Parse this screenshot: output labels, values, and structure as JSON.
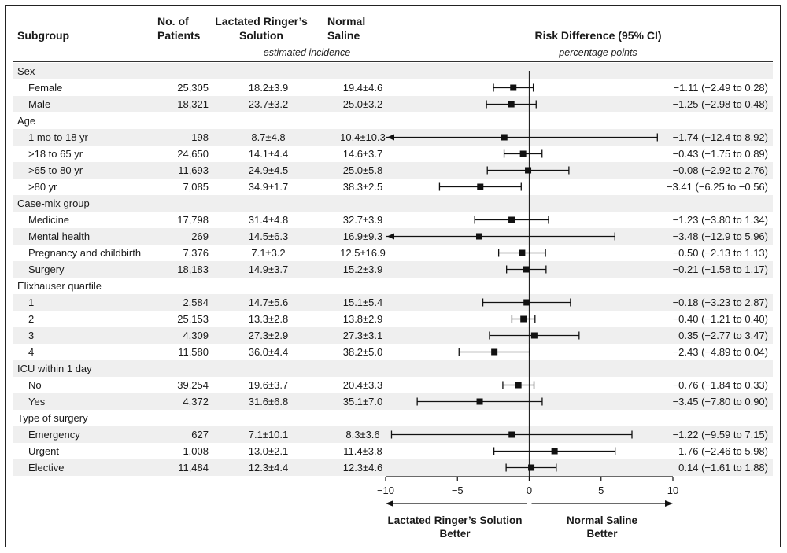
{
  "header": {
    "subgroup": "Subgroup",
    "patients": "No. of Patients",
    "lr": "Lactated Ringer’s Solution",
    "ns": "Normal Saline",
    "estimated": "estimated incidence",
    "rd": "Risk Difference (95% CI)",
    "pp": "percentage points"
  },
  "footer": {
    "left": "Lactated Ringer’s Solution Better",
    "right": "Normal Saline Better"
  },
  "rows": [
    {
      "label": "Sex",
      "group": true
    },
    {
      "label": "Female",
      "n": "25,305",
      "lr": "18.2±3.9",
      "ns": "19.4±4.6",
      "ci_text": "−1.11 (−2.49 to 0.28)"
    },
    {
      "label": "Male",
      "n": "18,321",
      "lr": "23.7±3.2",
      "ns": "25.0±3.2",
      "ci_text": "−1.25 (−2.98 to 0.48)"
    },
    {
      "label": "Age",
      "group": true
    },
    {
      "label": "1 mo to 18 yr",
      "n": "198",
      "lr": "8.7±4.8",
      "ns": "10.4±10.3",
      "ci_text": "−1.74 (−12.4 to 8.92)"
    },
    {
      "label": ">18 to 65 yr",
      "n": "24,650",
      "lr": "14.1±4.4",
      "ns": "14.6±3.7",
      "ci_text": "−0.43 (−1.75 to 0.89)"
    },
    {
      "label": ">65 to 80 yr",
      "n": "11,693",
      "lr": "24.9±4.5",
      "ns": "25.0±5.8",
      "ci_text": "−0.08 (−2.92 to 2.76)"
    },
    {
      "label": ">80 yr",
      "n": "7,085",
      "lr": "34.9±1.7",
      "ns": "38.3±2.5",
      "ci_text": "−3.41 (−6.25 to −0.56)"
    },
    {
      "label": "Case-mix group",
      "group": true
    },
    {
      "label": "Medicine",
      "n": "17,798",
      "lr": "31.4±4.8",
      "ns": "32.7±3.9",
      "ci_text": "−1.23 (−3.80 to 1.34)"
    },
    {
      "label": "Mental health",
      "n": "269",
      "lr": "14.5±6.3",
      "ns": "16.9±9.3",
      "ci_text": "−3.48 (−12.9 to 5.96)"
    },
    {
      "label": "Pregnancy and childbirth",
      "n": "7,376",
      "lr": "7.1±3.2",
      "ns": "12.5±16.9",
      "ci_text": "−0.50 (−2.13 to 1.13)"
    },
    {
      "label": "Surgery",
      "n": "18,183",
      "lr": "14.9±3.7",
      "ns": "15.2±3.9",
      "ci_text": "−0.21 (−1.58 to 1.17)"
    },
    {
      "label": "Elixhauser quartile",
      "group": true
    },
    {
      "label": "1",
      "n": "2,584",
      "lr": "14.7±5.6",
      "ns": "15.1±5.4",
      "ci_text": "−0.18 (−3.23 to 2.87)"
    },
    {
      "label": "2",
      "n": "25,153",
      "lr": "13.3±2.8",
      "ns": "13.8±2.9",
      "ci_text": "−0.40 (−1.21 to 0.40)"
    },
    {
      "label": "3",
      "n": "4,309",
      "lr": "27.3±2.9",
      "ns": "27.3±3.1",
      "ci_text": "0.35 (−2.77 to 3.47)"
    },
    {
      "label": "4",
      "n": "11,580",
      "lr": "36.0±4.4",
      "ns": "38.2±5.0",
      "ci_text": "−2.43 (−4.89 to 0.04)"
    },
    {
      "label": "ICU within 1 day",
      "group": true
    },
    {
      "label": "No",
      "n": "39,254",
      "lr": "19.6±3.7",
      "ns": "20.4±3.3",
      "ci_text": "−0.76 (−1.84 to 0.33)"
    },
    {
      "label": "Yes",
      "n": "4,372",
      "lr": "31.6±6.8",
      "ns": "35.1±7.0",
      "ci_text": "−3.45 (−7.80 to 0.90)"
    },
    {
      "label": "Type of surgery",
      "group": true
    },
    {
      "label": "Emergency",
      "n": "627",
      "lr": "7.1±10.1",
      "ns": "8.3±3.6",
      "ci_text": "−1.22 (−9.59 to 7.15)"
    },
    {
      "label": "Urgent",
      "n": "1,008",
      "lr": "13.0±2.1",
      "ns": "11.4±3.8",
      "ci_text": "1.76 (−2.46 to 5.98)"
    },
    {
      "label": "Elective",
      "n": "11,484",
      "lr": "12.3±4.4",
      "ns": "12.3±4.6",
      "ci_text": "0.14 (−1.61 to 1.88)"
    }
  ],
  "chart_data": {
    "type": "forest",
    "title": "Risk Difference (95% CI)",
    "xlabel": "percentage points",
    "xlim": [
      -10,
      10
    ],
    "xticks": [
      -10,
      -5,
      0,
      5,
      10
    ],
    "xtick_labels": [
      "−10",
      "−5",
      "0",
      "5",
      "10"
    ],
    "reference_line": 0,
    "points": [
      {
        "label": "Female",
        "est": -1.11,
        "lo": -2.49,
        "hi": 0.28
      },
      {
        "label": "Male",
        "est": -1.25,
        "lo": -2.98,
        "hi": 0.48
      },
      {
        "label": "1 mo to 18 yr",
        "est": -1.74,
        "lo": -12.4,
        "hi": 8.92
      },
      {
        "label": ">18 to 65 yr",
        "est": -0.43,
        "lo": -1.75,
        "hi": 0.89
      },
      {
        "label": ">65 to 80 yr",
        "est": -0.08,
        "lo": -2.92,
        "hi": 2.76
      },
      {
        "label": ">80 yr",
        "est": -3.41,
        "lo": -6.25,
        "hi": -0.56
      },
      {
        "label": "Medicine",
        "est": -1.23,
        "lo": -3.8,
        "hi": 1.34
      },
      {
        "label": "Mental health",
        "est": -3.48,
        "lo": -12.9,
        "hi": 5.96
      },
      {
        "label": "Pregnancy and childbirth",
        "est": -0.5,
        "lo": -2.13,
        "hi": 1.13
      },
      {
        "label": "Surgery",
        "est": -0.21,
        "lo": -1.58,
        "hi": 1.17
      },
      {
        "label": "1",
        "est": -0.18,
        "lo": -3.23,
        "hi": 2.87
      },
      {
        "label": "2",
        "est": -0.4,
        "lo": -1.21,
        "hi": 0.4
      },
      {
        "label": "3",
        "est": 0.35,
        "lo": -2.77,
        "hi": 3.47
      },
      {
        "label": "4",
        "est": -2.43,
        "lo": -4.89,
        "hi": 0.04
      },
      {
        "label": "No",
        "est": -0.76,
        "lo": -1.84,
        "hi": 0.33
      },
      {
        "label": "Yes",
        "est": -3.45,
        "lo": -7.8,
        "hi": 0.9
      },
      {
        "label": "Emergency",
        "est": -1.22,
        "lo": -9.59,
        "hi": 7.15
      },
      {
        "label": "Urgent",
        "est": 1.76,
        "lo": -2.46,
        "hi": 5.98
      },
      {
        "label": "Elective",
        "est": 0.14,
        "lo": -1.61,
        "hi": 1.88
      }
    ]
  }
}
